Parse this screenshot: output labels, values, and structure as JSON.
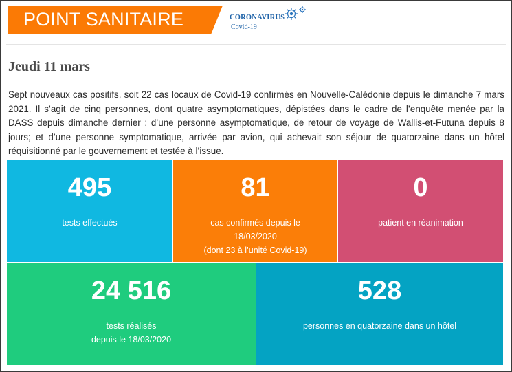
{
  "header": {
    "banner_title": "POINT SANITAIRE",
    "logo_line1": "CORONAVIRUS",
    "logo_line2": "Covid-19",
    "colors": {
      "banner": "#fb7a05",
      "logo_text": "#1f63a8"
    }
  },
  "date": "Jeudi 11 mars",
  "intro": "Sept nouveaux cas positifs, soit 22 cas locaux de Covid-19 confirmés en Nouvelle-Calédonie depuis le dimanche 7 mars 2021. Il s’agit de cinq personnes, dont quatre asymptomatiques, dépistées dans le cadre de l’enquête menée par la DASS depuis dimanche dernier ; d’une personne asymptomatique, de retour de voyage de Wallis-et-Futuna depuis 8 jours; et d’une personne symptomatique, arrivée par avion, qui achevait son séjour de quatorzaine dans un hôtel réquisitionné par le gouvernement et testée à l’issue.",
  "stats": [
    {
      "value": "495",
      "label_lines": [
        "tests effectués"
      ],
      "color": "#10b8e1"
    },
    {
      "value": "81",
      "label_lines": [
        "cas confirmés depuis le",
        "18/03/2020",
        "(dont 23 à l’unité Covid-19)"
      ],
      "color": "#fb7e08"
    },
    {
      "value": "0",
      "label_lines": [
        "patient en réanimation"
      ],
      "color": "#d24f73"
    },
    {
      "value": "24 516",
      "label_lines": [
        "tests réalisés",
        "depuis le 18/03/2020"
      ],
      "color": "#1fcc7e"
    },
    {
      "value": "528",
      "label_lines": [
        "personnes en quatorzaine dans un hôtel"
      ],
      "color": "#04a3c3"
    }
  ]
}
